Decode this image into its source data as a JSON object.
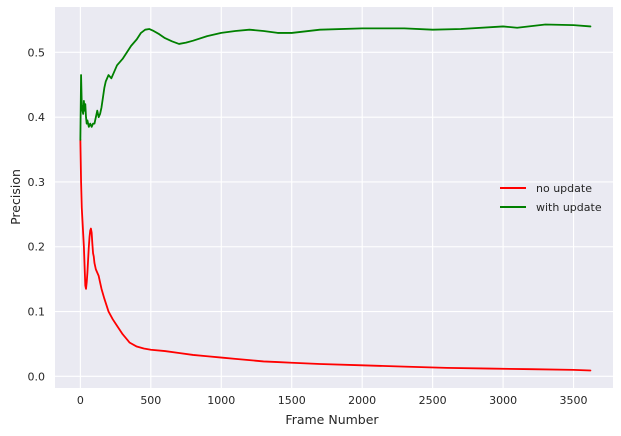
{
  "chart_data": {
    "type": "line",
    "title": "",
    "xlabel": "Frame Number",
    "ylabel": "Precision",
    "xlim": [
      -180,
      3780
    ],
    "ylim": [
      -0.018,
      0.57
    ],
    "x_ticks": [
      0,
      500,
      1000,
      1500,
      2000,
      2500,
      3000,
      3500
    ],
    "y_ticks": [
      0.0,
      0.1,
      0.2,
      0.3,
      0.4,
      0.5
    ],
    "x_tick_labels": [
      "0",
      "500",
      "1000",
      "1500",
      "2000",
      "2500",
      "3000",
      "3500"
    ],
    "y_tick_labels": [
      "0.0",
      "0.1",
      "0.2",
      "0.3",
      "0.4",
      "0.5"
    ],
    "grid": true,
    "legend_placement": "center-right",
    "background": "#EAEAF2",
    "series": [
      {
        "name": "no update",
        "color": "#FF0000",
        "x": [
          0,
          5,
          10,
          15,
          20,
          25,
          30,
          35,
          40,
          45,
          50,
          55,
          60,
          65,
          70,
          75,
          80,
          85,
          90,
          95,
          100,
          110,
          120,
          130,
          140,
          150,
          170,
          200,
          230,
          260,
          300,
          350,
          400,
          450,
          500,
          600,
          700,
          800,
          900,
          1000,
          1100,
          1200,
          1300,
          1400,
          1500,
          1700,
          2000,
          2300,
          2600,
          2900,
          3200,
          3500,
          3620
        ],
        "y": [
          0.365,
          0.3,
          0.26,
          0.24,
          0.22,
          0.2,
          0.17,
          0.14,
          0.135,
          0.145,
          0.16,
          0.18,
          0.2,
          0.215,
          0.225,
          0.228,
          0.222,
          0.205,
          0.19,
          0.185,
          0.175,
          0.165,
          0.16,
          0.155,
          0.145,
          0.135,
          0.12,
          0.1,
          0.088,
          0.078,
          0.065,
          0.052,
          0.046,
          0.043,
          0.041,
          0.039,
          0.036,
          0.033,
          0.031,
          0.029,
          0.027,
          0.025,
          0.023,
          0.022,
          0.021,
          0.019,
          0.017,
          0.015,
          0.013,
          0.012,
          0.011,
          0.01,
          0.009
        ]
      },
      {
        "name": "with update",
        "color": "#008000",
        "x": [
          0,
          5,
          10,
          15,
          20,
          25,
          30,
          35,
          40,
          45,
          50,
          60,
          70,
          80,
          90,
          100,
          110,
          120,
          130,
          140,
          150,
          160,
          170,
          180,
          190,
          200,
          220,
          240,
          260,
          280,
          300,
          330,
          360,
          400,
          430,
          460,
          490,
          520,
          560,
          600,
          650,
          700,
          750,
          800,
          900,
          1000,
          1100,
          1200,
          1300,
          1400,
          1500,
          1700,
          2000,
          2300,
          2500,
          2700,
          3000,
          3100,
          3300,
          3500,
          3620
        ],
        "y": [
          0.365,
          0.465,
          0.42,
          0.41,
          0.405,
          0.425,
          0.41,
          0.42,
          0.4,
          0.39,
          0.395,
          0.385,
          0.39,
          0.385,
          0.39,
          0.39,
          0.4,
          0.41,
          0.4,
          0.405,
          0.415,
          0.43,
          0.445,
          0.455,
          0.46,
          0.465,
          0.46,
          0.47,
          0.48,
          0.485,
          0.49,
          0.5,
          0.51,
          0.52,
          0.53,
          0.535,
          0.536,
          0.533,
          0.528,
          0.522,
          0.517,
          0.513,
          0.515,
          0.518,
          0.525,
          0.53,
          0.533,
          0.535,
          0.533,
          0.53,
          0.53,
          0.535,
          0.537,
          0.537,
          0.535,
          0.536,
          0.54,
          0.538,
          0.543,
          0.542,
          0.54
        ]
      }
    ]
  }
}
